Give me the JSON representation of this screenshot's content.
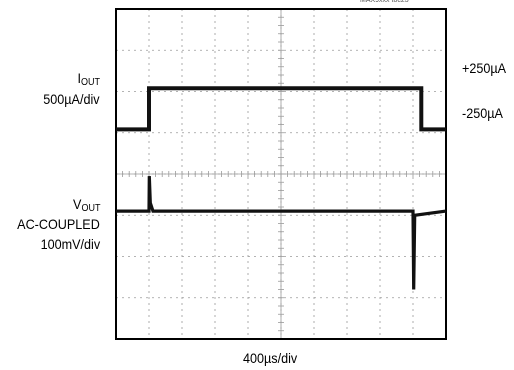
{
  "figure_id": "MAX9xxx toc23",
  "labels": {
    "iout_main": "I",
    "iout_sub": "OUT",
    "iout_scale": "500µA/div",
    "vout_main": "V",
    "vout_sub": "OUT",
    "vout_coupling": "AC-COUPLED",
    "vout_scale": "100mV/div",
    "level_high": "+250µA",
    "level_low": "-250µA",
    "time_scale": "400µs/div"
  },
  "colors": {
    "trace": "#111111",
    "grid": "#9a9a9a",
    "frame": "#000000",
    "background": "#ffffff"
  },
  "chart_data": {
    "type": "line",
    "title": "",
    "grid": true,
    "xlabel": "400µs/div",
    "x_range_div": [
      0,
      10
    ],
    "y_range_div": [
      -4,
      4
    ],
    "series": [
      {
        "name": "IOUT",
        "scale": "500µA/div",
        "points": [
          [
            0,
            1.08
          ],
          [
            1.0,
            1.08
          ],
          [
            1.0,
            2.08
          ],
          [
            9.25,
            2.08
          ],
          [
            9.25,
            1.08
          ],
          [
            10,
            1.08
          ]
        ]
      },
      {
        "name": "VOUT",
        "scale": "100mV/div",
        "points": [
          [
            0,
            -0.9
          ],
          [
            1.0,
            -0.9
          ],
          [
            1.01,
            -0.05
          ],
          [
            1.04,
            -0.7
          ],
          [
            1.12,
            -0.9
          ],
          [
            9.0,
            -0.9
          ],
          [
            9.02,
            -2.8
          ],
          [
            9.05,
            -1.0
          ],
          [
            10,
            -0.9
          ]
        ]
      }
    ]
  }
}
